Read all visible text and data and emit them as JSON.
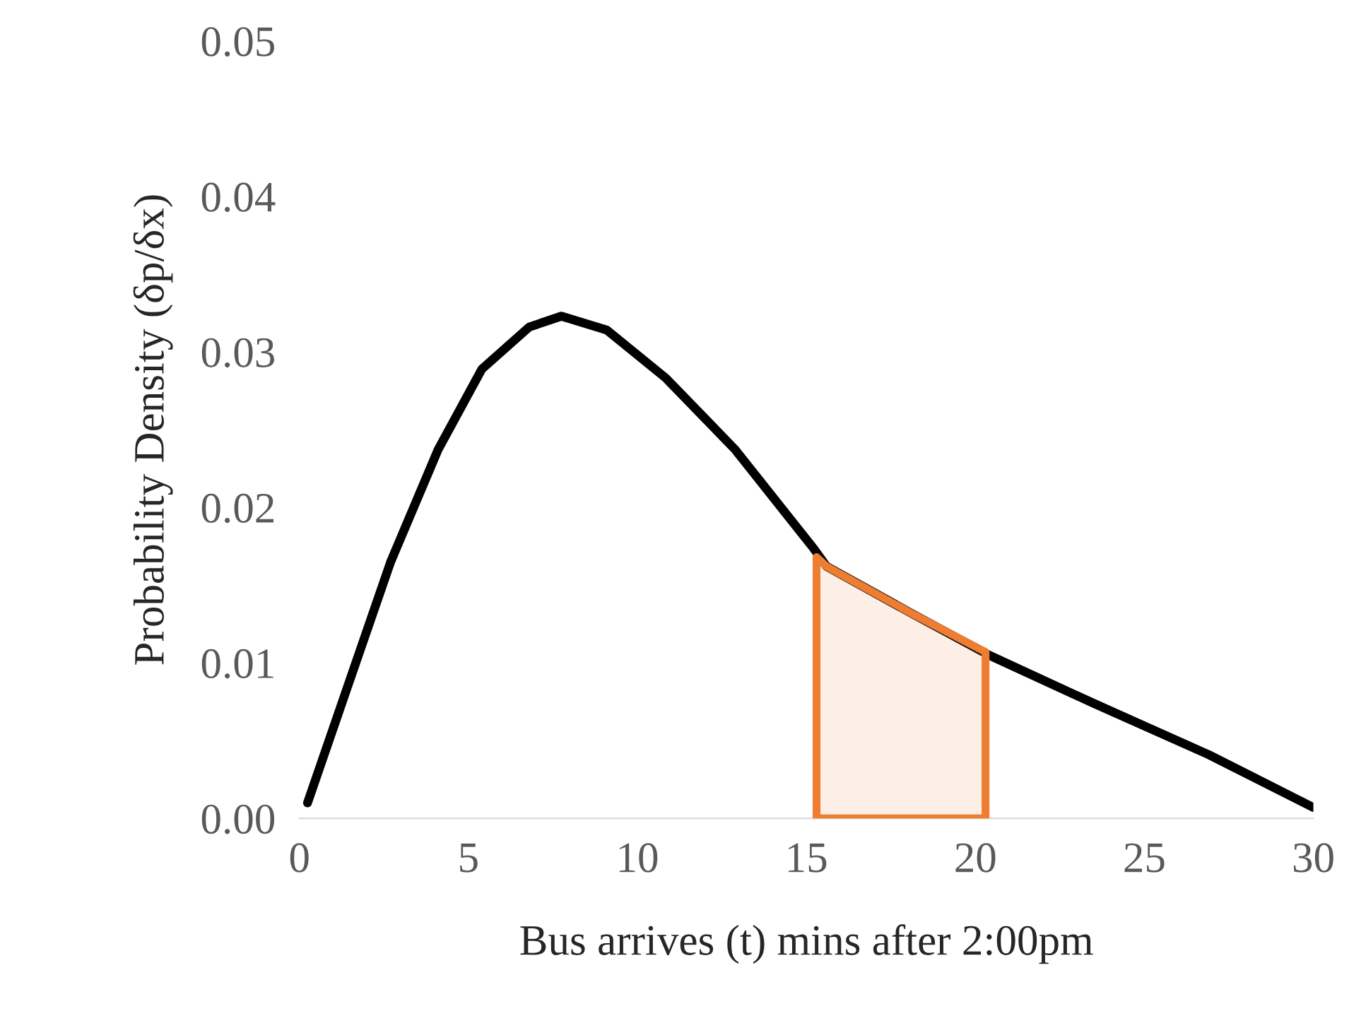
{
  "chart_data": {
    "type": "line",
    "xlabel": "Bus arrives (t) mins after 2:00pm",
    "ylabel": "Probability Density (δp/δx)",
    "series": [
      {
        "color": "#000000",
        "x": [
          0.24,
          1.35,
          2.7,
          4.1,
          5.4,
          6.8,
          7.75,
          9.1,
          10.85,
          12.9,
          15.2,
          15.6,
          18.1,
          20.4,
          23.5,
          26.9,
          30
        ],
        "values": [
          0.001,
          0.008,
          0.0165,
          0.0237,
          0.0289,
          0.0316,
          0.0323,
          0.0314,
          0.0283,
          0.0237,
          0.0174,
          0.0162,
          0.0132,
          0.0105,
          0.0074,
          0.0041,
          0.0007
        ]
      },
      {
        "type": "area",
        "color": "#ed7d31",
        "x": [
          15.3,
          15.6,
          18.1,
          20.3
        ],
        "values": [
          0.0168,
          0.0162,
          0.0132,
          0.0107
        ]
      }
    ],
    "xlim": [
      0,
      30
    ],
    "xticks": [
      0,
      5,
      10,
      15,
      20,
      25,
      30
    ],
    "ylim": [
      0,
      0.05
    ],
    "yticks": [
      {
        "value": 0,
        "label": "0.00"
      },
      {
        "value": 0.01,
        "label": "0.01"
      },
      {
        "value": 0.02,
        "label": "0.02"
      },
      {
        "value": 0.03,
        "label": "0.03"
      },
      {
        "value": 0.04,
        "label": "0.04"
      },
      {
        "value": 0.05,
        "label": "0.05"
      }
    ],
    "grid": false,
    "legend": false
  }
}
